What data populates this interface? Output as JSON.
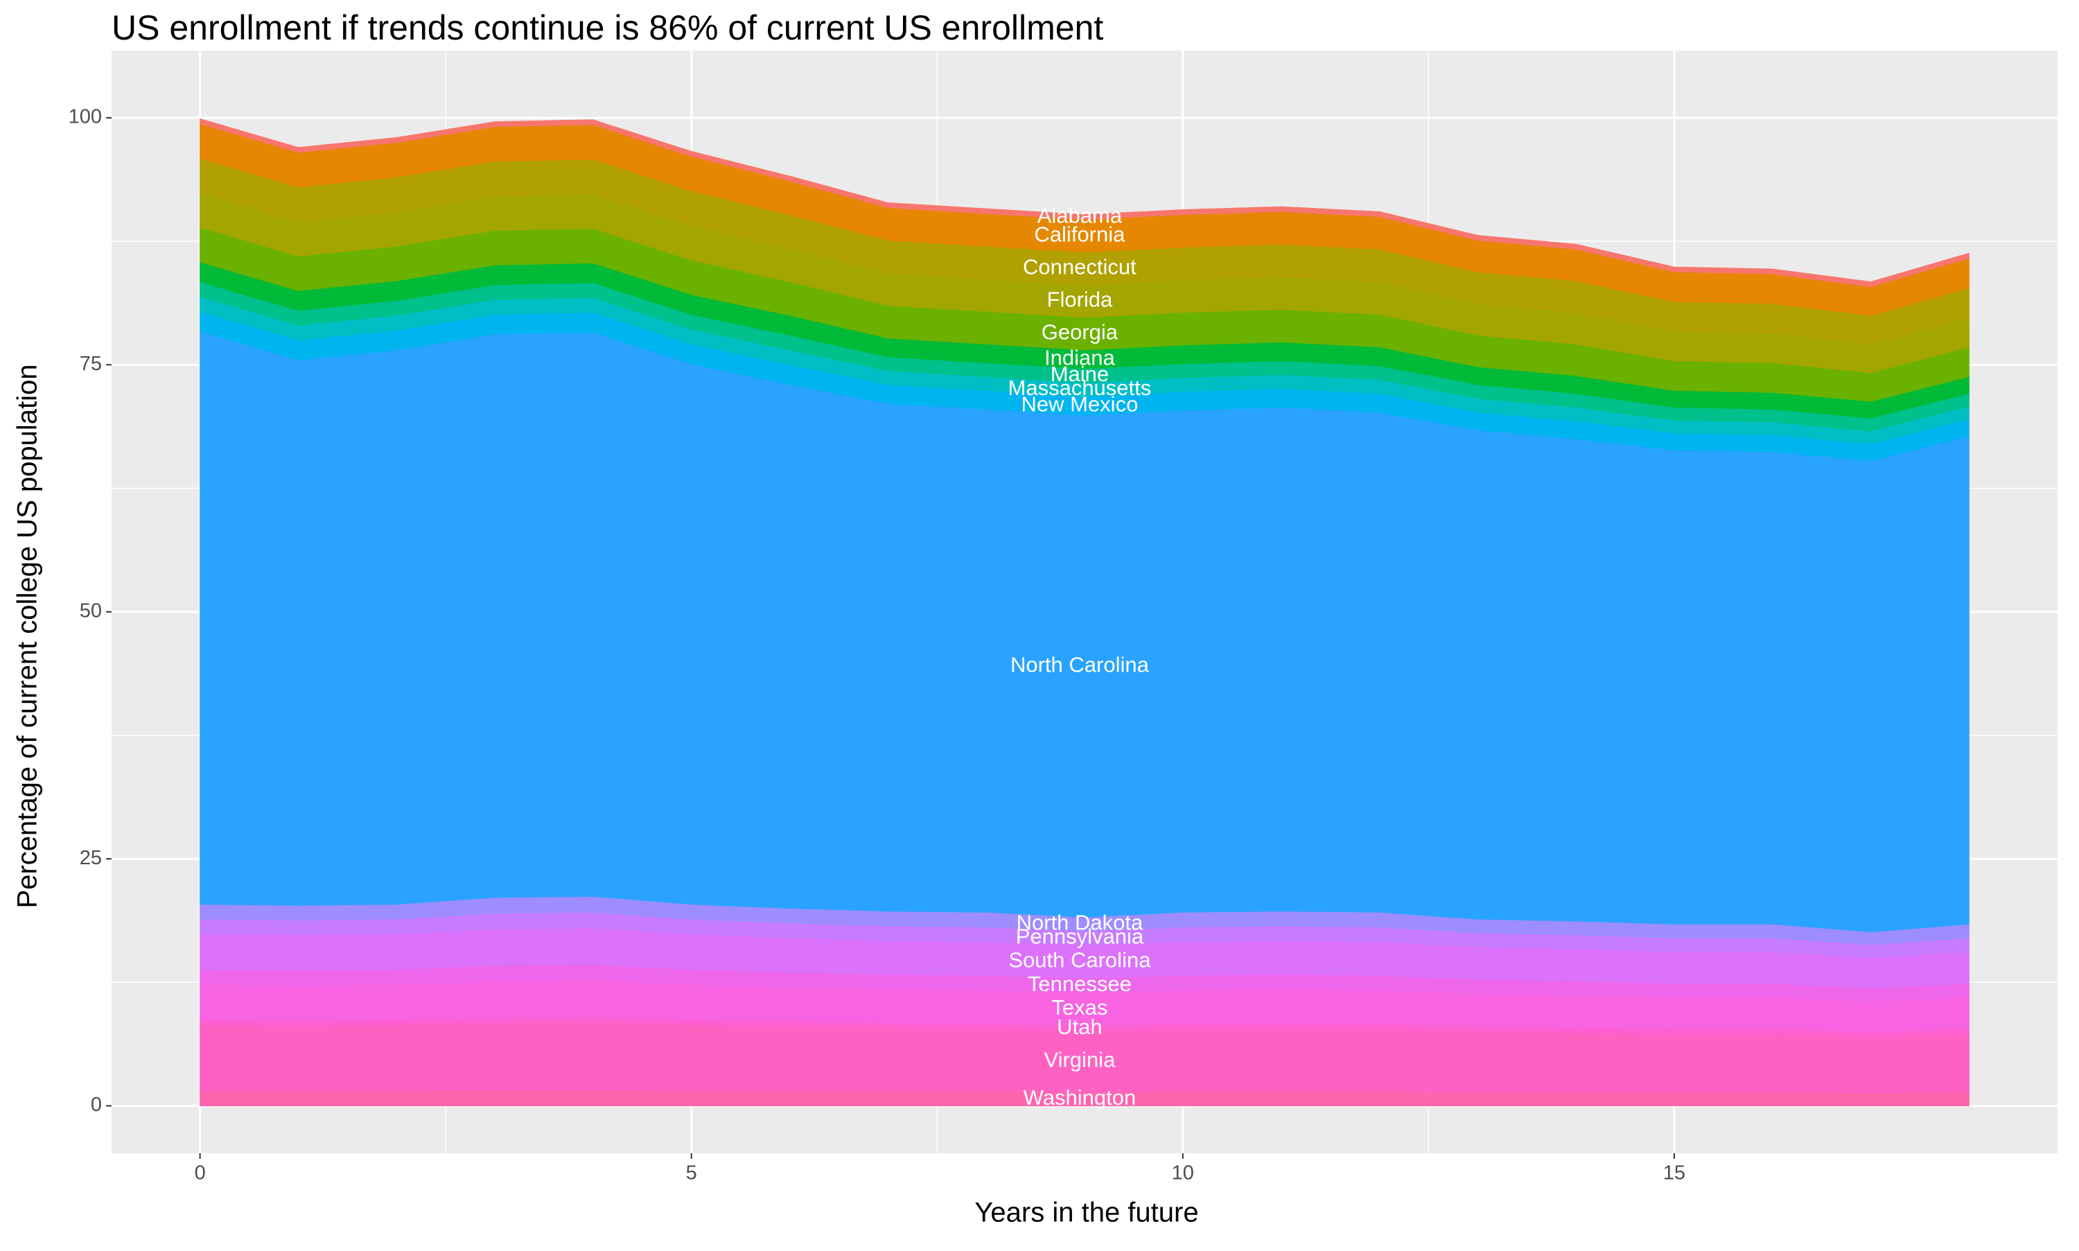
{
  "chart_data": {
    "type": "area",
    "title": "US enrollment if trends continue is 86% of current US enrollment",
    "x_label": "Years in the future",
    "y_label": "Percentage of current college US population",
    "x": [
      0,
      1,
      2,
      3,
      4,
      5,
      6,
      7,
      8,
      9,
      10,
      11,
      12,
      13,
      14,
      15,
      16,
      17,
      18
    ],
    "xlim": [
      -0.9,
      18.9
    ],
    "xticks": [
      0,
      5,
      10,
      15
    ],
    "ylim": [
      -4.8,
      106.8
    ],
    "yticks": [
      0,
      25,
      50,
      75,
      100
    ],
    "grid": true,
    "stacked": true,
    "series": [
      {
        "name": "Alabama",
        "color": "#F8766D",
        "values": [
          0.5,
          0.5,
          0.5,
          0.5,
          0.5,
          0.5,
          0.5,
          0.5,
          0.5,
          0.5,
          0.5,
          0.5,
          0.5,
          0.5,
          0.5,
          0.5,
          0.5,
          0.5,
          0.5
        ]
      },
      {
        "name": "California",
        "color": "#E58700",
        "values": [
          3.5,
          3.5,
          3.5,
          3.5,
          3.5,
          3.5,
          3.4,
          3.3,
          3.3,
          3.3,
          3.3,
          3.3,
          3.3,
          3.2,
          3.2,
          3.0,
          3.0,
          2.9,
          3.0
        ]
      },
      {
        "name": "Connecticut",
        "color": "#B0A000",
        "values": [
          3.5,
          3.5,
          3.5,
          3.5,
          3.5,
          3.5,
          3.4,
          3.3,
          3.3,
          3.3,
          3.3,
          3.3,
          3.3,
          3.2,
          3.2,
          3.0,
          3.0,
          2.9,
          3.0
        ]
      },
      {
        "name": "Florida",
        "color": "#A3A500",
        "values": [
          3.5,
          3.5,
          3.5,
          3.5,
          3.5,
          3.5,
          3.4,
          3.3,
          3.3,
          3.3,
          3.3,
          3.3,
          3.3,
          3.2,
          3.2,
          3.0,
          3.0,
          2.9,
          3.0
        ]
      },
      {
        "name": "Georgia",
        "color": "#6BB100",
        "values": [
          3.5,
          3.5,
          3.5,
          3.5,
          3.5,
          3.5,
          3.4,
          3.3,
          3.3,
          3.3,
          3.3,
          3.3,
          3.3,
          3.2,
          3.2,
          3.0,
          3.0,
          2.9,
          3.0
        ]
      },
      {
        "name": "Indiana",
        "color": "#00BA38",
        "values": [
          2,
          2,
          2,
          2,
          2,
          2,
          2,
          1.9,
          1.9,
          1.9,
          1.9,
          1.9,
          1.9,
          1.8,
          1.8,
          1.7,
          1.7,
          1.7,
          1.7
        ]
      },
      {
        "name": "Maine",
        "color": "#00C08B",
        "values": [
          1.5,
          1.5,
          1.5,
          1.5,
          1.5,
          1.5,
          1.5,
          1.4,
          1.4,
          1.4,
          1.4,
          1.4,
          1.4,
          1.4,
          1.4,
          1.3,
          1.3,
          1.3,
          1.3
        ]
      },
      {
        "name": "Massachusetts",
        "color": "#00BFC4",
        "values": [
          1.5,
          1.5,
          1.5,
          1.5,
          1.5,
          1.5,
          1.5,
          1.4,
          1.4,
          1.4,
          1.4,
          1.4,
          1.4,
          1.4,
          1.4,
          1.3,
          1.3,
          1.3,
          1.3
        ]
      },
      {
        "name": "New Mexico",
        "color": "#00B4F0",
        "values": [
          2,
          2,
          2,
          2,
          2,
          2,
          2,
          1.9,
          1.9,
          1.9,
          1.9,
          1.9,
          1.9,
          1.8,
          1.8,
          1.7,
          1.7,
          1.7,
          1.7
        ]
      },
      {
        "name": "North Carolina",
        "color": "#29A3FF",
        "values": [
          58,
          55.2,
          56.1,
          57,
          57.1,
          54.7,
          53,
          51.4,
          50.9,
          50.8,
          50.8,
          51,
          50.6,
          49.5,
          48.8,
          48,
          47.8,
          47.7,
          49.4
        ]
      },
      {
        "name": "North Dakota",
        "color": "#9D8DFF",
        "values": [
          1.5,
          1.5,
          1.5,
          1.6,
          1.6,
          1.5,
          1.5,
          1.5,
          1.5,
          1.4,
          1.5,
          1.5,
          1.5,
          1.4,
          1.4,
          1.4,
          1.4,
          1.3,
          1.4
        ]
      },
      {
        "name": "Pennsylvania",
        "color": "#C77CFF",
        "values": [
          1.5,
          1.5,
          1.5,
          1.6,
          1.6,
          1.5,
          1.5,
          1.5,
          1.5,
          1.4,
          1.5,
          1.5,
          1.5,
          1.4,
          1.4,
          1.4,
          1.4,
          1.3,
          1.4
        ]
      },
      {
        "name": "South Carolina",
        "color": "#DC71FA",
        "values": [
          3.6,
          3.6,
          3.6,
          3.7,
          3.7,
          3.6,
          3.5,
          3.4,
          3.4,
          3.4,
          3.4,
          3.4,
          3.4,
          3.3,
          3.3,
          3.2,
          3.2,
          3.1,
          3.2
        ]
      },
      {
        "name": "Tennessee",
        "color": "#EE67EB",
        "values": [
          1.5,
          1.5,
          1.5,
          1.6,
          1.6,
          1.5,
          1.5,
          1.5,
          1.5,
          1.4,
          1.5,
          1.5,
          1.5,
          1.4,
          1.4,
          1.4,
          1.4,
          1.3,
          1.4
        ]
      },
      {
        "name": "Texas",
        "color": "#F763E0",
        "values": [
          3.6,
          3.6,
          3.6,
          3.7,
          3.7,
          3.6,
          3.5,
          3.4,
          3.4,
          3.4,
          3.4,
          3.4,
          3.4,
          3.3,
          3.3,
          3.2,
          3.2,
          3.1,
          3.2
        ]
      },
      {
        "name": "Utah",
        "color": "#FD61D1",
        "values": [
          0.5,
          0.5,
          0.5,
          0.5,
          0.5,
          0.5,
          0.5,
          0.5,
          0.5,
          0.5,
          0.5,
          0.5,
          0.5,
          0.5,
          0.5,
          0.5,
          0.5,
          0.5,
          0.5
        ]
      },
      {
        "name": "Virginia",
        "color": "#FF61C3",
        "values": [
          6.7,
          6.6,
          6.7,
          6.8,
          6.9,
          6.7,
          6.5,
          6.4,
          6.3,
          6.2,
          6.3,
          6.4,
          6.3,
          6.2,
          6.0,
          5.9,
          5.9,
          5.7,
          5.9
        ]
      },
      {
        "name": "Washington",
        "color": "#FF65AE",
        "values": [
          1.5,
          1.5,
          1.5,
          1.6,
          1.6,
          1.5,
          1.5,
          1.5,
          1.5,
          1.4,
          1.5,
          1.5,
          1.5,
          1.4,
          1.4,
          1.4,
          1.4,
          1.3,
          1.4
        ]
      }
    ]
  }
}
